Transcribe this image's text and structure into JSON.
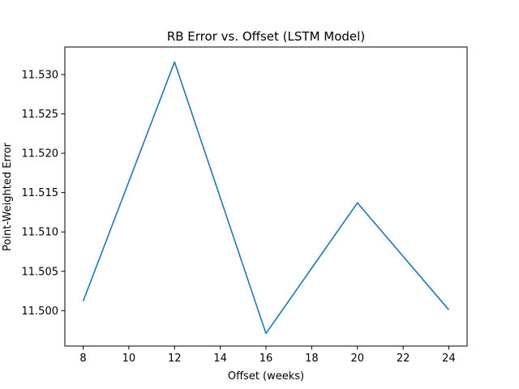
{
  "chart_data": {
    "type": "line",
    "title": "RB Error vs. Offset (LSTM Model)",
    "xlabel": "Offset (weeks)",
    "ylabel": "Point-Weighted Error",
    "xlim": [
      7.2,
      24.8
    ],
    "ylim": [
      11.4955,
      11.5335
    ],
    "xticks": [
      8,
      10,
      12,
      14,
      16,
      18,
      20,
      22,
      24
    ],
    "xtick_labels": [
      "8",
      "10",
      "12",
      "14",
      "16",
      "18",
      "20",
      "22",
      "24"
    ],
    "yticks": [
      11.5,
      11.505,
      11.51,
      11.515,
      11.52,
      11.525,
      11.53
    ],
    "ytick_labels": [
      "11.500",
      "11.505",
      "11.510",
      "11.515",
      "11.520",
      "11.525",
      "11.530"
    ],
    "grid": false,
    "series": [
      {
        "x": [
          8,
          12,
          16,
          20,
          24
        ],
        "values": [
          11.5012,
          11.5316,
          11.4971,
          11.5137,
          11.5001
        ],
        "color": "#1f77b4"
      }
    ]
  }
}
